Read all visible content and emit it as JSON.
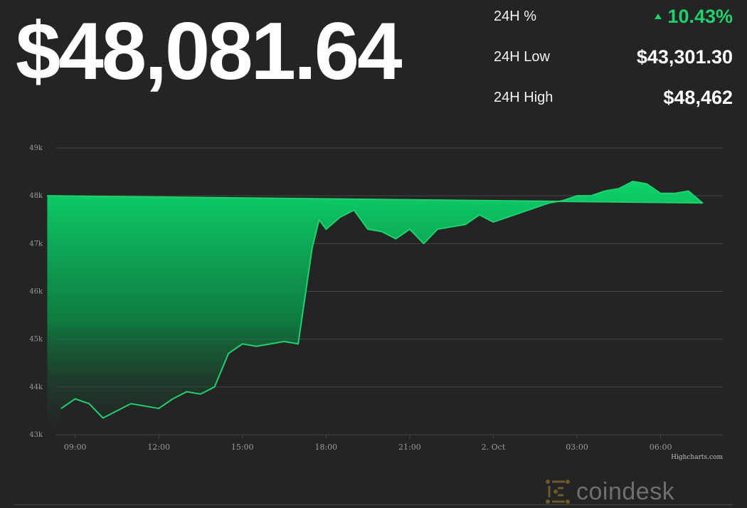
{
  "header": {
    "price": "$48,081.64"
  },
  "stats": {
    "change_label": "24H %",
    "change_value": "10.43%",
    "low_label": "24H Low",
    "low_value": "$43,301.30",
    "high_label": "24H High",
    "high_value": "$48,462"
  },
  "colors": {
    "background": "#242424",
    "line": "#1ed16d",
    "positive": "#1ed16d",
    "gridline": "#444444",
    "tick_text": "#9a9a9a"
  },
  "chart_data": {
    "type": "area",
    "title": "",
    "xlabel": "",
    "ylabel": "",
    "ylim": [
      43000,
      49000
    ],
    "yticks": [
      43000,
      44000,
      45000,
      46000,
      47000,
      48000,
      49000
    ],
    "ytick_labels": [
      "43k",
      "44k",
      "45k",
      "46k",
      "47k",
      "48k",
      "49k"
    ],
    "xticks": [
      "09:00",
      "12:00",
      "15:00",
      "18:00",
      "21:00",
      "2. Oct",
      "03:00",
      "06:00"
    ],
    "grid": true,
    "legend": "none",
    "x": [
      "08:30",
      "09:00",
      "09:30",
      "10:00",
      "10:30",
      "11:00",
      "11:30",
      "12:00",
      "12:30",
      "13:00",
      "13:30",
      "14:00",
      "14:30",
      "15:00",
      "15:30",
      "16:00",
      "16:30",
      "17:00",
      "17:30",
      "17:45",
      "18:00",
      "18:30",
      "19:00",
      "19:30",
      "20:00",
      "20:30",
      "21:00",
      "21:30",
      "22:00",
      "22:30",
      "23:00",
      "23:30",
      "00:00",
      "00:30",
      "01:00",
      "01:30",
      "02:00",
      "02:30",
      "03:00",
      "03:30",
      "04:00",
      "04:30",
      "05:00",
      "05:30",
      "06:00",
      "06:30",
      "07:00",
      "07:30",
      "08:00"
    ],
    "series": [
      {
        "values": [
          43550,
          43750,
          43650,
          43350,
          43500,
          43650,
          43600,
          43550,
          43750,
          43900,
          43850,
          44000,
          44700,
          44900,
          44850,
          44900,
          44950,
          44900,
          46900,
          47500,
          47300,
          47550,
          47700,
          47300,
          47250,
          47100,
          47300,
          47000,
          47300,
          47350,
          47400,
          47600,
          47450,
          47550,
          47650,
          47750,
          47850,
          47900,
          48000,
          48000,
          48100,
          48150,
          48300,
          48250,
          48050,
          48050,
          48100,
          47850,
          48000
        ]
      }
    ]
  },
  "footer": {
    "credits": "Highcharts.com",
    "brand": "coindesk"
  }
}
